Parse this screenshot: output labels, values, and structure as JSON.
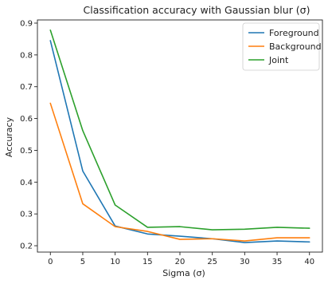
{
  "chart_data": {
    "type": "line",
    "title": "Classification accuracy with Gaussian blur (σ)",
    "xlabel": "Sigma (σ)",
    "ylabel": "Accuracy",
    "x": [
      0,
      5,
      10,
      15,
      20,
      25,
      30,
      35,
      40
    ],
    "xlim": [
      -2,
      42
    ],
    "ylim": [
      0.18,
      0.91
    ],
    "xticks": [
      0,
      5,
      10,
      15,
      20,
      25,
      30,
      35,
      40
    ],
    "yticks": [
      0.2,
      0.3,
      0.4,
      0.5,
      0.6,
      0.7,
      0.8,
      0.9
    ],
    "grid": false,
    "legend_position": "top-right",
    "series": [
      {
        "name": "Foreground",
        "color": "#1f77b4",
        "values": [
          0.845,
          0.435,
          0.262,
          0.237,
          0.23,
          0.222,
          0.21,
          0.215,
          0.212
        ]
      },
      {
        "name": "Background",
        "color": "#ff7f0e",
        "values": [
          0.648,
          0.332,
          0.26,
          0.245,
          0.22,
          0.222,
          0.215,
          0.225,
          0.225
        ]
      },
      {
        "name": "Joint",
        "color": "#2ca02c",
        "values": [
          0.878,
          0.562,
          0.328,
          0.258,
          0.26,
          0.25,
          0.252,
          0.258,
          0.255
        ]
      }
    ]
  }
}
